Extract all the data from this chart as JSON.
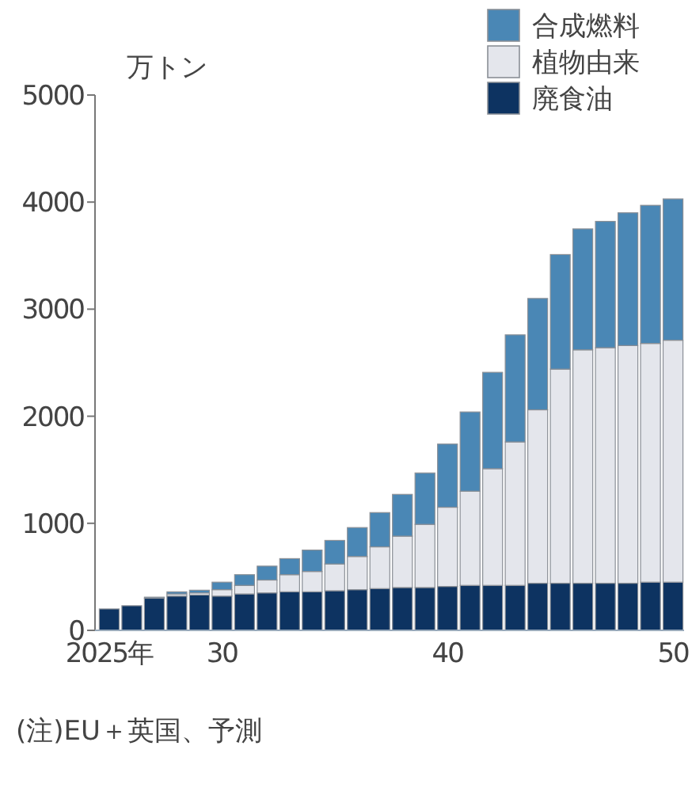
{
  "chart_data": {
    "type": "bar",
    "stacked": true,
    "ylabel": "万トン",
    "categories": [
      "2025年",
      null,
      null,
      null,
      null,
      "30",
      null,
      null,
      null,
      null,
      null,
      null,
      null,
      null,
      null,
      "40",
      null,
      null,
      null,
      null,
      null,
      null,
      null,
      null,
      null,
      "50"
    ],
    "series": [
      {
        "name": "廃食油",
        "color": "#0d3361",
        "values": [
          200,
          230,
          300,
          320,
          330,
          320,
          340,
          350,
          360,
          360,
          370,
          380,
          390,
          400,
          400,
          410,
          420,
          420,
          420,
          440,
          440,
          440,
          440,
          440,
          450,
          450
        ]
      },
      {
        "name": "植物由来",
        "color": "#e4e6ec",
        "values": [
          0,
          0,
          0,
          20,
          20,
          60,
          80,
          120,
          160,
          190,
          250,
          310,
          390,
          480,
          590,
          740,
          880,
          1090,
          1340,
          1620,
          2000,
          2180,
          2200,
          2220,
          2230,
          2260
        ]
      },
      {
        "name": "合成燃料",
        "color": "#4a87b5",
        "values": [
          0,
          0,
          10,
          20,
          25,
          70,
          100,
          130,
          150,
          200,
          220,
          270,
          320,
          390,
          480,
          590,
          740,
          900,
          1000,
          1040,
          1070,
          1130,
          1180,
          1240,
          1290,
          1320
        ]
      }
    ],
    "ylim": [
      0,
      5000
    ],
    "yticks": [
      0,
      1000,
      2000,
      3000,
      4000,
      5000
    ],
    "grid": false,
    "legend": "top right",
    "annotations": [
      "(注)EU＋英国、予測"
    ]
  }
}
